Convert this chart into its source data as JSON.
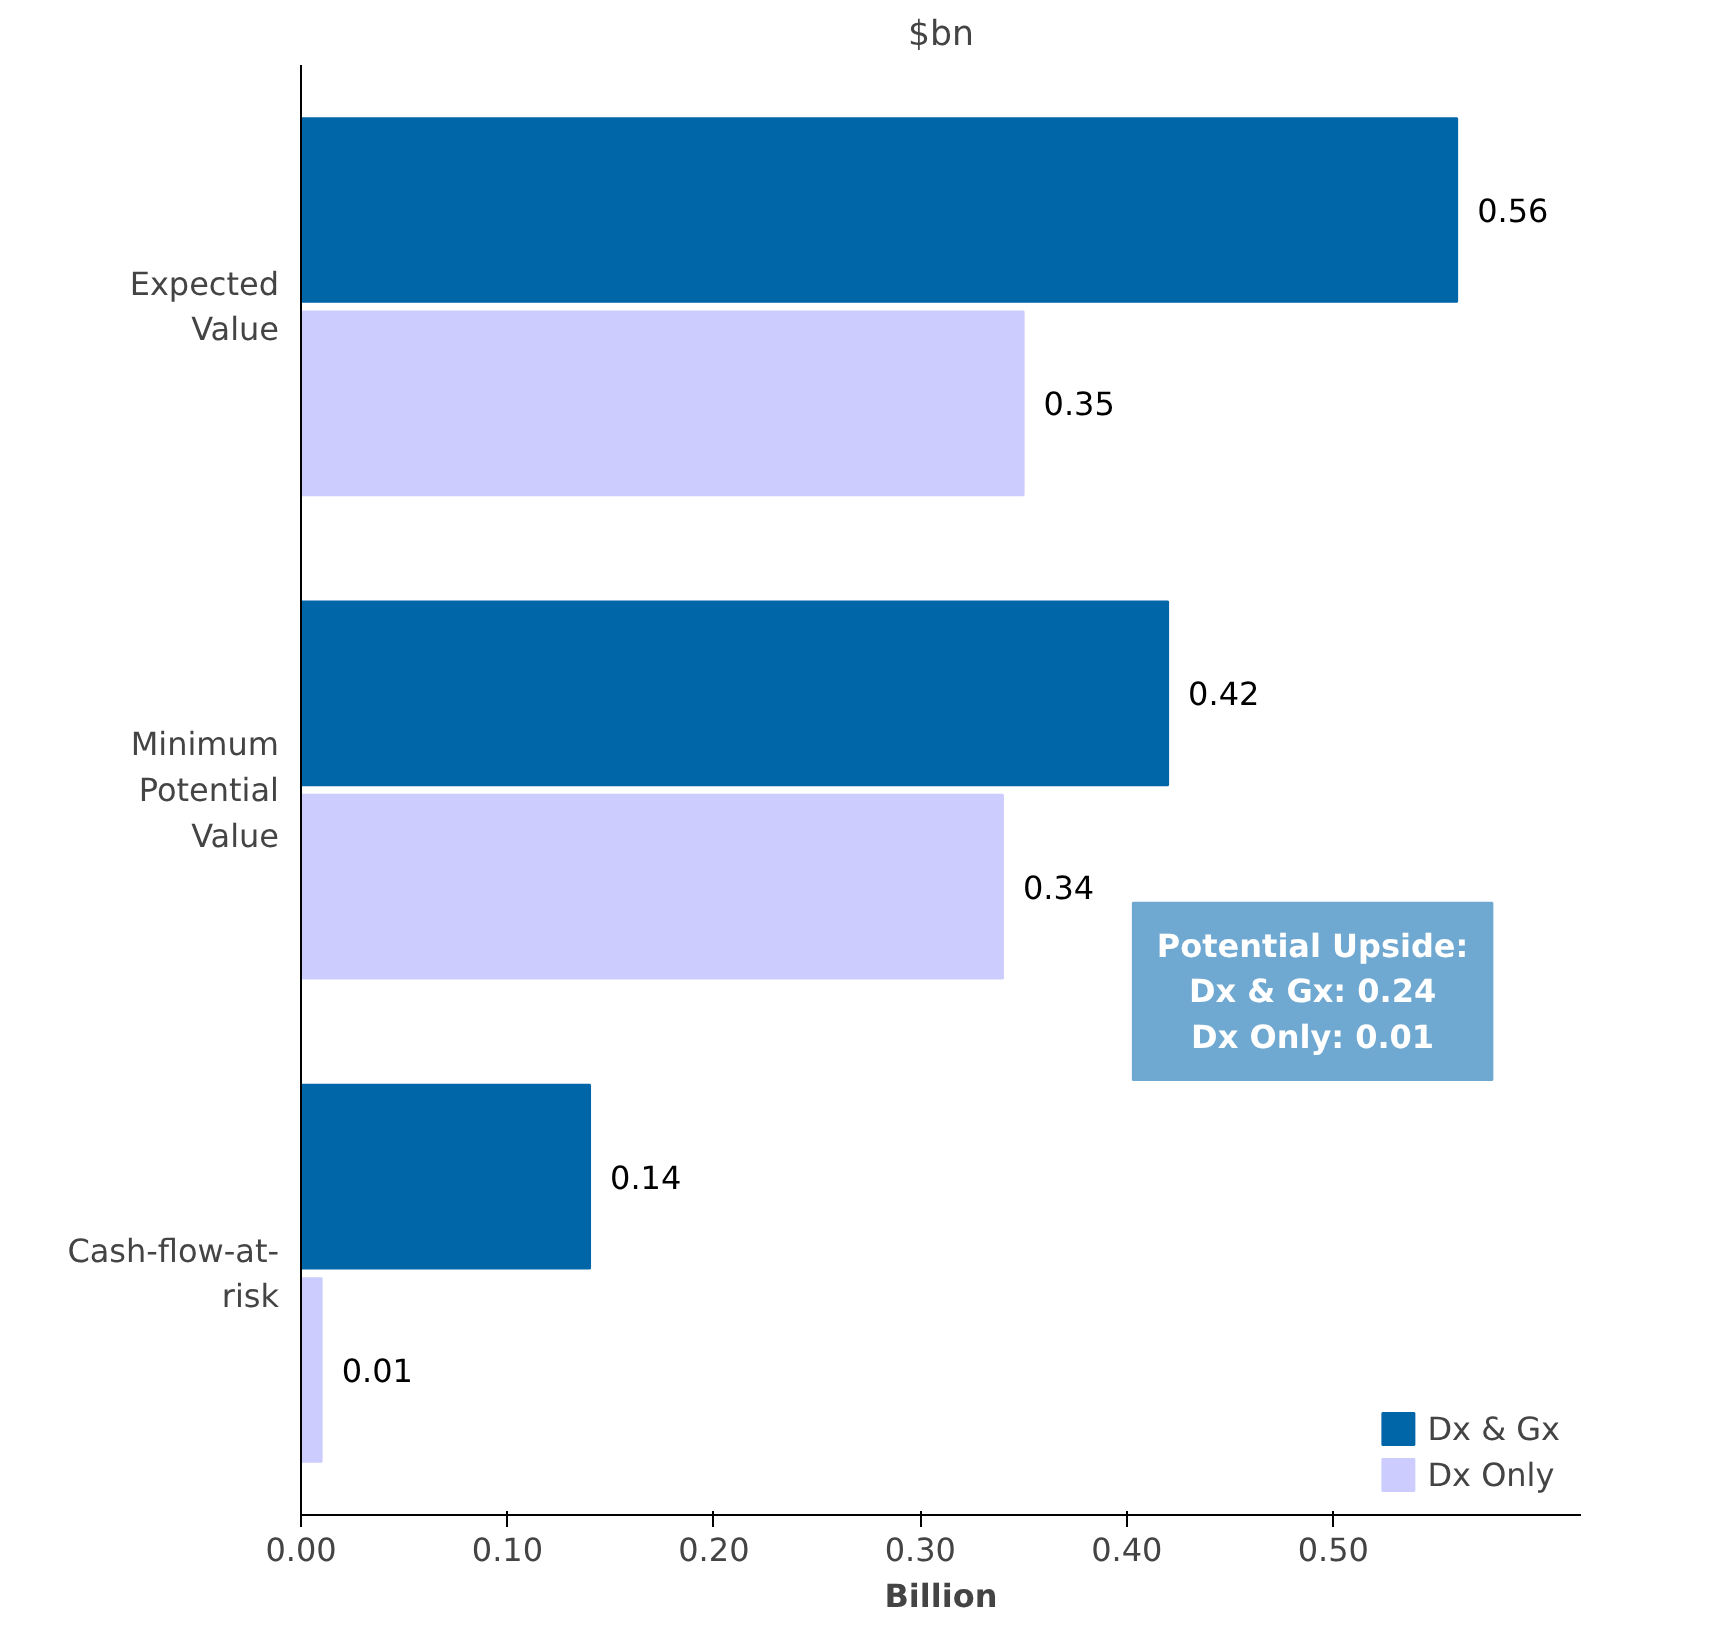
{
  "chart_data": {
    "type": "bar",
    "orientation": "horizontal",
    "title": "$bn",
    "xlabel": "Billion",
    "categories": [
      "Expected Value",
      "Minimum Potential Value",
      "Cash-flow-at-risk"
    ],
    "series": [
      {
        "name": "Dx & Gx",
        "color": "#0066a8",
        "values": [
          0.56,
          0.42,
          0.14
        ]
      },
      {
        "name": "Dx Only",
        "color": "#ccccff",
        "values": [
          0.35,
          0.34,
          0.01
        ]
      }
    ],
    "xlim": [
      0,
      0.62
    ],
    "xticks": [
      {
        "value": 0,
        "label": "0.00"
      },
      {
        "value": 0.1,
        "label": "0.10"
      },
      {
        "value": 0.2,
        "label": "0.20"
      },
      {
        "value": 0.3,
        "label": "0.30"
      },
      {
        "value": 0.4,
        "label": "0.40"
      },
      {
        "value": 0.5,
        "label": "0.50"
      }
    ],
    "data_labels": true,
    "grid": false,
    "legend": "bottom right",
    "annotations": [
      "Potential Upside:\nDx & Gx: 0.24\nDx Only: 0.01"
    ]
  }
}
